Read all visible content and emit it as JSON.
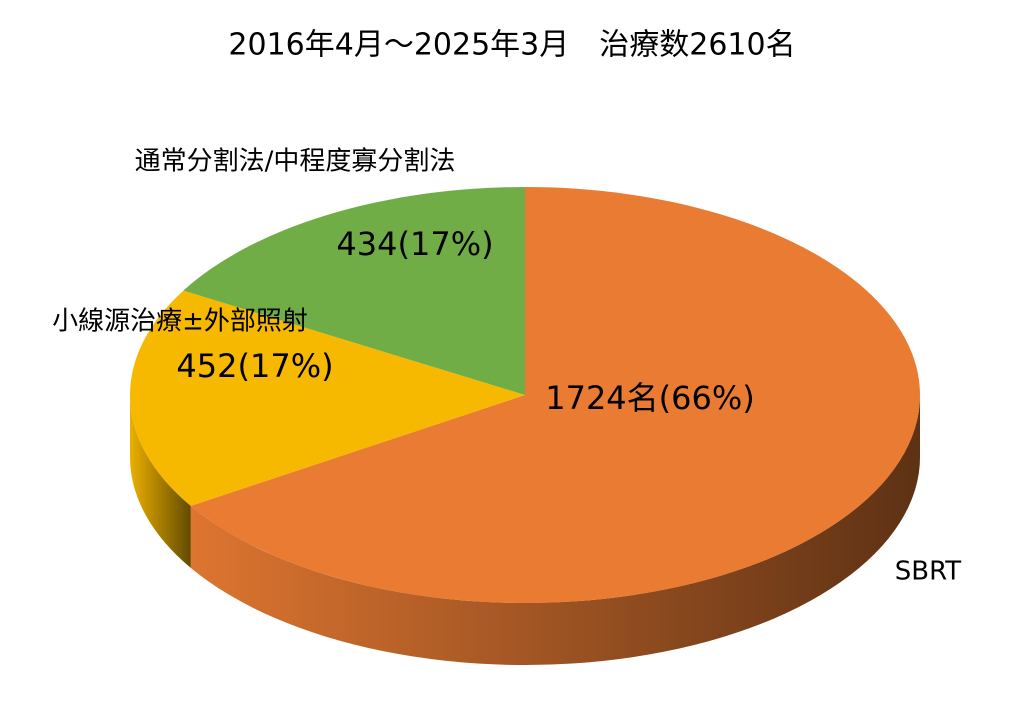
{
  "chart_data": {
    "type": "pie",
    "title": "2016年4月～2025年3月　治療数2610名",
    "categories": [
      "SBRT",
      "小線源治療±外部照射",
      "通常分割法/中程度寡分割法"
    ],
    "values": [
      1724,
      452,
      434
    ],
    "value_labels": [
      "1724名(66%)",
      "452(17%)",
      "434(17%)"
    ],
    "colors": [
      "#e97b33",
      "#f7b900",
      "#70ad47"
    ]
  }
}
